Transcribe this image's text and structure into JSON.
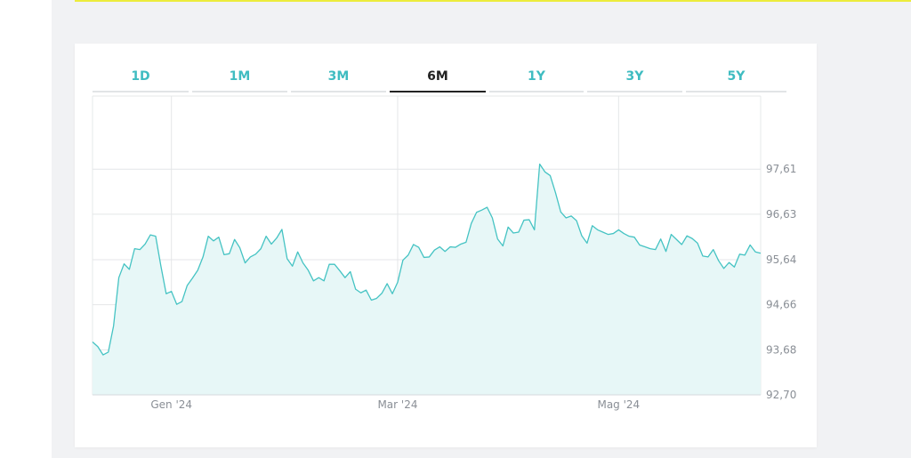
{
  "tabs": [
    {
      "label": "1D",
      "active": false
    },
    {
      "label": "1M",
      "active": false
    },
    {
      "label": "3M",
      "active": false
    },
    {
      "label": "6M",
      "active": true
    },
    {
      "label": "1Y",
      "active": false
    },
    {
      "label": "3Y",
      "active": false
    },
    {
      "label": "5Y",
      "active": false
    }
  ],
  "colors": {
    "line": "#45c3c3",
    "fill": "#e7f7f7",
    "active_tab": "#222222",
    "tab": "#3fbcc1",
    "page_accent": "#ecec3c"
  },
  "chart_data": {
    "type": "area",
    "title": "",
    "xlabel": "",
    "ylabel": "",
    "ylim": [
      92.7,
      99.2
    ],
    "y_ticks": [
      92.7,
      93.68,
      94.66,
      95.64,
      96.63,
      97.61
    ],
    "y_tick_labels": [
      "92,70",
      "93,68",
      "94,66",
      "95,64",
      "96,63",
      "97,61"
    ],
    "x_ticks": [
      {
        "label": "Gen '24",
        "index": 15
      },
      {
        "label": "Mar '24",
        "index": 58
      },
      {
        "label": "Mag '24",
        "index": 100
      }
    ],
    "grid": true,
    "values": [
      93.85,
      93.75,
      93.57,
      93.63,
      94.2,
      95.25,
      95.55,
      95.43,
      95.88,
      95.86,
      95.98,
      96.18,
      96.15,
      95.5,
      94.9,
      94.95,
      94.67,
      94.73,
      95.08,
      95.24,
      95.41,
      95.7,
      96.15,
      96.05,
      96.13,
      95.75,
      95.77,
      96.08,
      95.9,
      95.57,
      95.7,
      95.76,
      95.88,
      96.15,
      95.98,
      96.11,
      96.3,
      95.66,
      95.5,
      95.81,
      95.57,
      95.41,
      95.18,
      95.25,
      95.18,
      95.54,
      95.54,
      95.4,
      95.25,
      95.38,
      95.0,
      94.92,
      94.98,
      94.76,
      94.8,
      94.91,
      95.12,
      94.9,
      95.15,
      95.63,
      95.74,
      95.97,
      95.91,
      95.69,
      95.7,
      95.85,
      95.92,
      95.82,
      95.92,
      95.91,
      95.98,
      96.02,
      96.43,
      96.67,
      96.72,
      96.78,
      96.55,
      96.09,
      95.94,
      96.35,
      96.22,
      96.24,
      96.5,
      96.51,
      96.29,
      97.72,
      97.55,
      97.47,
      97.1,
      96.68,
      96.55,
      96.59,
      96.49,
      96.16,
      96.0,
      96.38,
      96.29,
      96.24,
      96.19,
      96.21,
      96.29,
      96.21,
      96.15,
      96.13,
      95.96,
      95.92,
      95.88,
      95.86,
      96.09,
      95.82,
      96.19,
      96.08,
      95.97,
      96.16,
      96.1,
      96.0,
      95.72,
      95.7,
      95.86,
      95.62,
      95.45,
      95.58,
      95.48,
      95.76,
      95.74,
      95.96,
      95.81,
      95.78
    ]
  }
}
